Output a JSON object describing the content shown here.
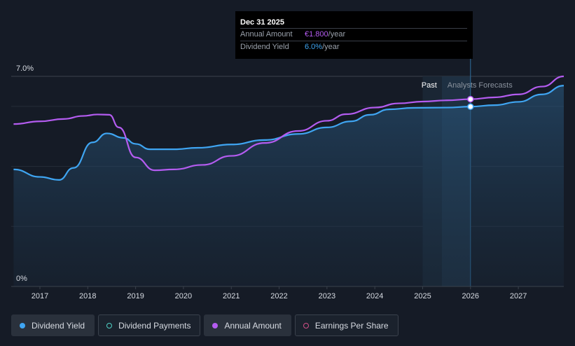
{
  "chart_data": {
    "type": "line",
    "title": "",
    "xlabel": "",
    "ylabel": "",
    "ylim": [
      0,
      7.0
    ],
    "xlim": [
      2016.4,
      2027.95
    ],
    "y_ticks": [
      "7.0%",
      "0%"
    ],
    "x_ticks": [
      "2017",
      "2018",
      "2019",
      "2020",
      "2021",
      "2022",
      "2023",
      "2024",
      "2025",
      "2026",
      "2027"
    ],
    "past_label": "Past",
    "forecast_label": "Analysts Forecasts",
    "forecast_start": 2025.4,
    "highlight_x": 2026.0,
    "series": [
      {
        "name": "Dividend Yield",
        "color": "#3fa5f2",
        "points": [
          [
            2016.45,
            3.9
          ],
          [
            2017.0,
            3.65
          ],
          [
            2017.4,
            3.55
          ],
          [
            2017.7,
            3.95
          ],
          [
            2018.1,
            4.8
          ],
          [
            2018.4,
            5.1
          ],
          [
            2018.75,
            4.95
          ],
          [
            2019.0,
            4.75
          ],
          [
            2019.3,
            4.57
          ],
          [
            2019.8,
            4.57
          ],
          [
            2020.3,
            4.62
          ],
          [
            2021.0,
            4.73
          ],
          [
            2021.7,
            4.88
          ],
          [
            2022.4,
            5.08
          ],
          [
            2023.0,
            5.3
          ],
          [
            2023.5,
            5.5
          ],
          [
            2023.9,
            5.72
          ],
          [
            2024.3,
            5.9
          ],
          [
            2024.8,
            5.95
          ],
          [
            2025.5,
            5.96
          ],
          [
            2026.0,
            5.99
          ],
          [
            2026.5,
            6.04
          ],
          [
            2027.0,
            6.15
          ],
          [
            2027.5,
            6.4
          ],
          [
            2027.95,
            6.69
          ]
        ]
      },
      {
        "name": "Annual Amount",
        "color": "#b45cf0",
        "points": [
          [
            2016.45,
            5.41
          ],
          [
            2017.0,
            5.5
          ],
          [
            2017.5,
            5.58
          ],
          [
            2017.9,
            5.68
          ],
          [
            2018.2,
            5.73
          ],
          [
            2018.45,
            5.72
          ],
          [
            2018.65,
            5.3
          ],
          [
            2019.0,
            4.3
          ],
          [
            2019.4,
            3.87
          ],
          [
            2019.8,
            3.9
          ],
          [
            2020.4,
            4.05
          ],
          [
            2021.0,
            4.35
          ],
          [
            2021.7,
            4.78
          ],
          [
            2022.4,
            5.18
          ],
          [
            2023.0,
            5.52
          ],
          [
            2023.4,
            5.74
          ],
          [
            2024.0,
            5.96
          ],
          [
            2024.5,
            6.1
          ],
          [
            2025.0,
            6.16
          ],
          [
            2025.5,
            6.2
          ],
          [
            2026.0,
            6.24
          ],
          [
            2026.5,
            6.3
          ],
          [
            2027.0,
            6.4
          ],
          [
            2027.5,
            6.66
          ],
          [
            2027.95,
            7.0
          ]
        ]
      }
    ],
    "highlight_points": [
      {
        "series": "Annual Amount",
        "x": 2026.0,
        "y": 6.24
      },
      {
        "series": "Dividend Yield",
        "x": 2026.0,
        "y": 5.99
      }
    ]
  },
  "tooltip": {
    "date": "Dec 31 2025",
    "rows": [
      {
        "label": "Annual Amount",
        "value": "€1.800",
        "unit": "/year"
      },
      {
        "label": "Dividend Yield",
        "value": "6.0%",
        "unit": "/year"
      }
    ]
  },
  "legend": [
    {
      "label": "Dividend Yield",
      "color": "#3fa5f2",
      "filled": true,
      "active": true
    },
    {
      "label": "Dividend Payments",
      "color": "#4fd1c5",
      "filled": false,
      "active": false
    },
    {
      "label": "Annual Amount",
      "color": "#b45cf0",
      "filled": true,
      "active": true
    },
    {
      "label": "Earnings Per Share",
      "color": "#d14f87",
      "filled": false,
      "active": false
    }
  ]
}
